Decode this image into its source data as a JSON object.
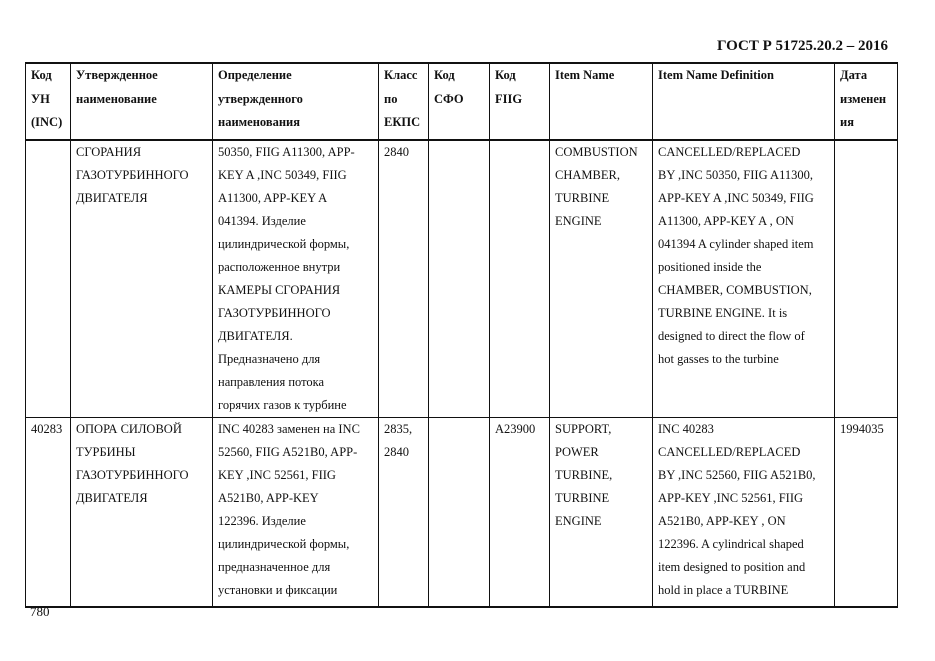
{
  "header": {
    "title": "ГОСТ Р 51725.20.2 – 2016"
  },
  "table": {
    "columns": [
      [
        "Код",
        "УН",
        "(INC)"
      ],
      [
        "Утвержденное",
        "наименование"
      ],
      [
        "Определение",
        "утвержденного",
        "наименования"
      ],
      [
        "Класс",
        "по",
        "ЕКПС"
      ],
      [
        "Код",
        "СФО"
      ],
      [
        "Код",
        "FIIG"
      ],
      [
        "Item Name"
      ],
      [
        "Item Name Definition"
      ],
      [
        "Дата",
        "изменен",
        "ия"
      ]
    ],
    "rows": [
      [
        [],
        [
          "СГОРАНИЯ",
          "ГАЗОТУРБИННОГО",
          "ДВИГАТЕЛЯ"
        ],
        [
          "50350, FIIG A11300, APP-",
          "KEY A ,INC 50349, FIIG",
          "A11300, APP-KEY A",
          "041394. Изделие",
          "цилиндрической формы,",
          "расположенное внутри",
          "КАМЕРЫ СГОРАНИЯ",
          "ГАЗОТУРБИННОГО",
          "ДВИГАТЕЛЯ.",
          "Предназначено для",
          "направления потока",
          "горячих газов к турбине"
        ],
        [
          "2840"
        ],
        [],
        [],
        [
          "COMBUSTION",
          "CHAMBER,",
          "TURBINE",
          "ENGINE"
        ],
        [
          "CANCELLED/REPLACED",
          "BY ,INC 50350, FIIG A11300,",
          "APP-KEY A  ,INC 50349, FIIG",
          "A11300, APP-KEY A  , ON",
          "041394 A cylinder shaped item",
          "positioned inside the",
          "CHAMBER, COMBUSTION,",
          "TURBINE ENGINE. It is",
          "designed to direct the flow of",
          "hot gasses to the turbine"
        ],
        []
      ],
      [
        [
          "40283"
        ],
        [
          "ОПОРА СИЛОВОЙ",
          "ТУРБИНЫ",
          "ГАЗОТУРБИННОГО",
          "ДВИГАТЕЛЯ"
        ],
        [
          "INC 40283 заменен на INC",
          "52560, FIIG A521B0, APP-",
          "KEY ,INC 52561, FIIG",
          "A521B0, APP-KEY",
          "122396. Изделие",
          "цилиндрической формы,",
          "предназначенное для",
          "установки и фиксации"
        ],
        [
          "2835,",
          "2840"
        ],
        [],
        [
          "A23900"
        ],
        [
          "SUPPORT,",
          "POWER",
          "TURBINE,",
          "TURBINE",
          "ENGINE"
        ],
        [
          "INC 40283",
          "CANCELLED/REPLACED",
          "BY ,INC 52560, FIIG A521B0,",
          "APP-KEY   ,INC 52561, FIIG",
          "A521B0, APP-KEY   , ON",
          "122396. A cylindrical shaped",
          "item designed to position and",
          "hold in place a TURBINE"
        ],
        [
          "1994035"
        ]
      ]
    ]
  },
  "footer": {
    "page_number": "780"
  }
}
